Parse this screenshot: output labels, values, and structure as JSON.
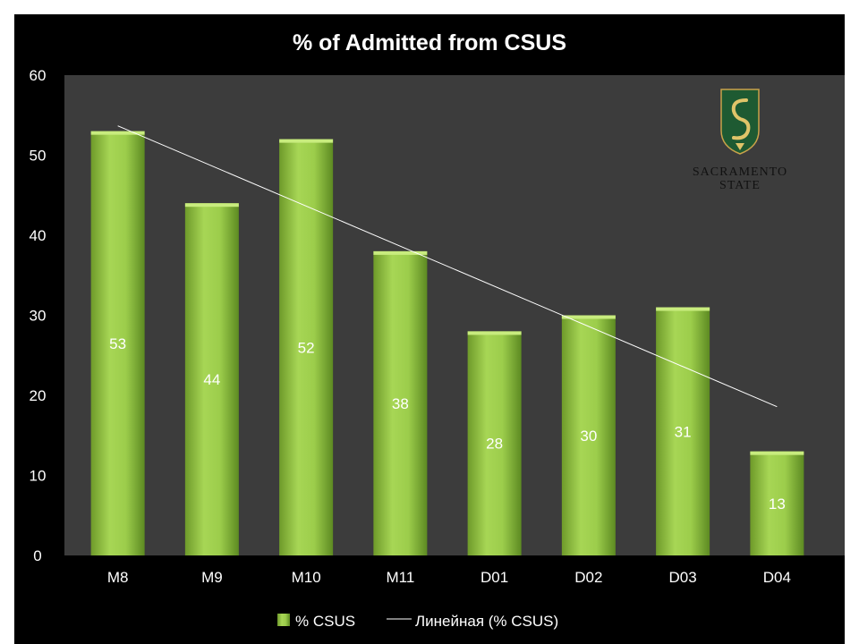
{
  "chart_data": {
    "type": "bar",
    "title": "% of Admitted from CSUS",
    "categories": [
      "M8",
      "M9",
      "M10",
      "M11",
      "D01",
      "D02",
      "D03",
      "D04"
    ],
    "series": [
      {
        "name": "% CSUS",
        "values": [
          53,
          44,
          52,
          38,
          28,
          30,
          31,
          13
        ],
        "color": "#8cc63f"
      }
    ],
    "trendline": {
      "name": "Линейная (% CSUS)",
      "type": "linear",
      "color": "#ffffff"
    },
    "ylim": [
      0,
      60
    ],
    "yticks": [
      0,
      10,
      20,
      30,
      40,
      50,
      60
    ],
    "grid": false,
    "legend": "bottom",
    "plot_background": "#3c3c3c",
    "background": "#000000"
  },
  "logo": {
    "icon": "sacramento-state-logo-icon",
    "line1": "SACRAMENTO",
    "line2": "STATE",
    "color": "#1e5a32"
  }
}
